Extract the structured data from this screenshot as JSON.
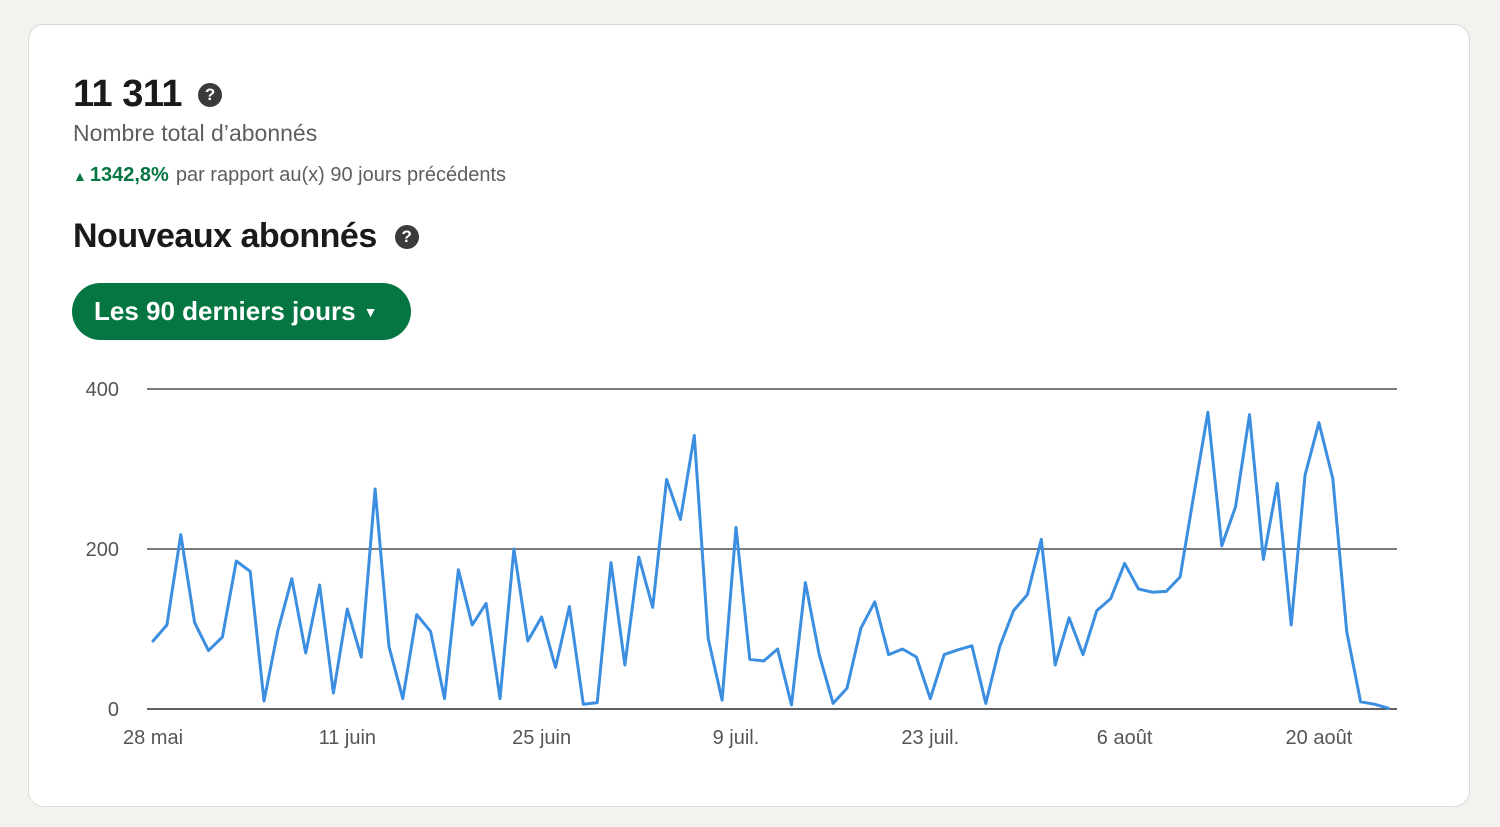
{
  "summary": {
    "total_followers": "11 311",
    "total_label": "Nombre total d’abonnés",
    "change_value": "1342,8%",
    "change_text": "par rapport au(x) 90 jours précédents",
    "change_color": "#057642",
    "help_icon_glyph": "?"
  },
  "new_followers": {
    "title": "Nouveaux abonnés",
    "range_button_label": "Les 90 derniers jours",
    "range_button_color": "#057642"
  },
  "chart_data": {
    "type": "line",
    "title": "",
    "xlabel": "",
    "ylabel": "",
    "ylim": [
      0,
      400
    ],
    "y_ticks": [
      0,
      200,
      400
    ],
    "x_tick_labels": [
      "28 mai",
      "11 juin",
      "25 juin",
      "9 juil.",
      "23 juil.",
      "6 août",
      "20 août"
    ],
    "x_tick_day_offsets": [
      0,
      14,
      28,
      42,
      56,
      70,
      84
    ],
    "grid": true,
    "line_color": "#3b8ee0",
    "series": [
      {
        "name": "",
        "values": [
          85,
          105,
          218,
          108,
          73,
          90,
          185,
          172,
          10,
          98,
          163,
          70,
          155,
          20,
          125,
          65,
          275,
          78,
          13,
          118,
          97,
          13,
          174,
          105,
          132,
          13,
          200,
          85,
          115,
          52,
          128,
          6,
          8,
          183,
          55,
          190,
          127,
          287,
          237,
          342,
          88,
          11,
          227,
          62,
          60,
          75,
          5,
          158,
          68,
          7,
          26,
          101,
          134,
          68,
          75,
          65,
          13,
          68,
          74,
          79,
          7,
          78,
          123,
          143,
          212,
          55,
          114,
          68,
          123,
          138,
          182,
          150,
          146,
          147,
          165,
          269,
          371,
          204,
          253,
          368,
          187,
          282,
          105,
          292,
          358,
          288,
          97,
          9,
          6,
          1
        ]
      }
    ]
  }
}
